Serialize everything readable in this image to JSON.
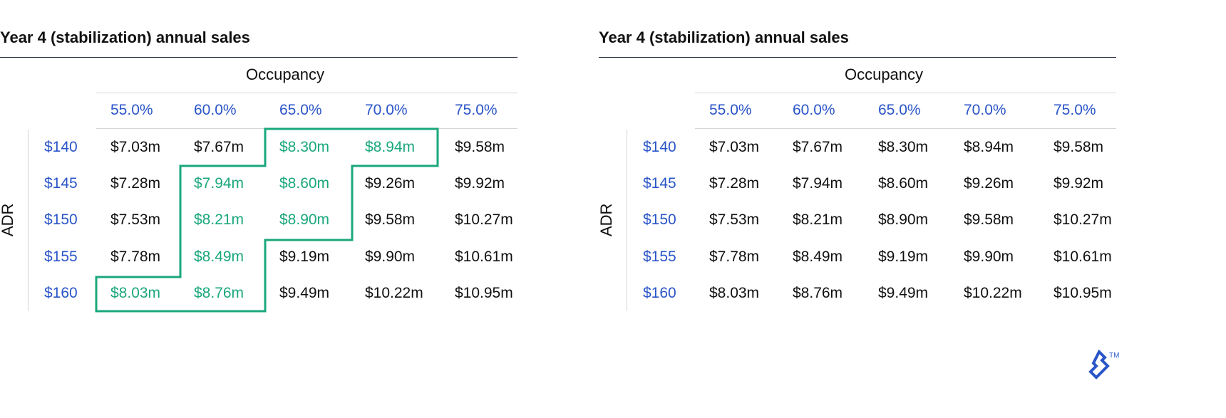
{
  "colors": {
    "header_blue": "#2a55c8",
    "highlight_green": "#1aa77c",
    "text": "#111111",
    "rule": "#1b2236"
  },
  "chart_data": [
    {
      "type": "table",
      "title": "Year 4 (stabilization) annual sales",
      "column_group_label": "Occupancy",
      "row_group_label": "ADR",
      "columns": [
        "55.0%",
        "60.0%",
        "65.0%",
        "70.0%",
        "75.0%"
      ],
      "rows": [
        "$140",
        "$145",
        "$150",
        "$155",
        "$160"
      ],
      "cells": [
        [
          "$7.03m",
          "$7.67m",
          "$8.30m",
          "$8.94m",
          "$9.58m"
        ],
        [
          "$7.28m",
          "$7.94m",
          "$8.60m",
          "$9.26m",
          "$9.92m"
        ],
        [
          "$7.53m",
          "$8.21m",
          "$8.90m",
          "$9.58m",
          "$10.27m"
        ],
        [
          "$7.78m",
          "$8.49m",
          "$9.19m",
          "$9.90m",
          "$10.61m"
        ],
        [
          "$8.03m",
          "$8.76m",
          "$9.49m",
          "$10.22m",
          "$10.95m"
        ]
      ],
      "highlighted": [
        [
          false,
          false,
          true,
          true,
          false
        ],
        [
          false,
          true,
          true,
          false,
          false
        ],
        [
          false,
          true,
          true,
          false,
          false
        ],
        [
          false,
          true,
          false,
          false,
          false
        ],
        [
          true,
          true,
          false,
          false,
          false
        ]
      ]
    },
    {
      "type": "table",
      "title": "Year 4 (stabilization) annual sales",
      "column_group_label": "Occupancy",
      "row_group_label": "ADR",
      "columns": [
        "55.0%",
        "60.0%",
        "65.0%",
        "70.0%",
        "75.0%"
      ],
      "rows": [
        "$140",
        "$145",
        "$150",
        "$155",
        "$160"
      ],
      "cells": [
        [
          "$7.03m",
          "$7.67m",
          "$8.30m",
          "$8.94m",
          "$9.58m"
        ],
        [
          "$7.28m",
          "$7.94m",
          "$8.60m",
          "$9.26m",
          "$9.92m"
        ],
        [
          "$7.53m",
          "$8.21m",
          "$8.90m",
          "$9.58m",
          "$10.27m"
        ],
        [
          "$7.78m",
          "$8.49m",
          "$9.19m",
          "$9.90m",
          "$10.61m"
        ],
        [
          "$8.03m",
          "$8.76m",
          "$9.49m",
          "$10.22m",
          "$10.95m"
        ]
      ],
      "highlighted": [
        [
          false,
          false,
          false,
          false,
          false
        ],
        [
          false,
          false,
          false,
          false,
          false
        ],
        [
          false,
          false,
          false,
          false,
          false
        ],
        [
          false,
          false,
          false,
          false,
          false
        ],
        [
          false,
          false,
          false,
          false,
          false
        ]
      ]
    }
  ],
  "logo": {
    "icon": "toptal-logo-icon",
    "trademark": "TM"
  }
}
